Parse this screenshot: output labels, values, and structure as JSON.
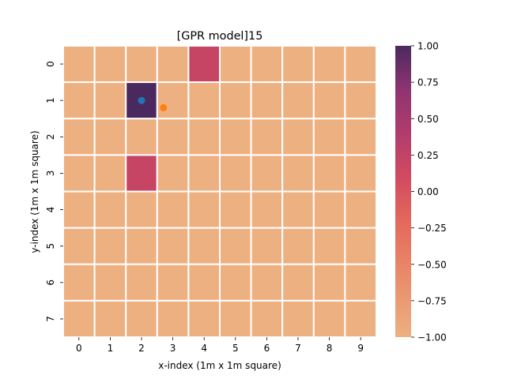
{
  "chart_data": {
    "type": "heatmap",
    "title": "[GPR model]15",
    "xlabel": "x-index (1m x 1m square)",
    "ylabel": "y-index (1m x 1m square)",
    "x_categories": [
      "0",
      "1",
      "2",
      "3",
      "4",
      "5",
      "6",
      "7",
      "8",
      "9"
    ],
    "y_categories": [
      "0",
      "1",
      "2",
      "3",
      "4",
      "5",
      "6",
      "7"
    ],
    "values": [
      [
        -1,
        -1,
        -1,
        -1,
        0.2,
        -1,
        -1,
        -1,
        -1,
        -1
      ],
      [
        -1,
        -1,
        1,
        -1,
        -1,
        -1,
        -1,
        -1,
        -1,
        -1
      ],
      [
        -1,
        -1,
        -1,
        -1,
        -1,
        -1,
        -1,
        -1,
        -1,
        -1
      ],
      [
        -1,
        -1,
        0.2,
        -1,
        -1,
        -1,
        -1,
        -1,
        -1,
        -1
      ],
      [
        -1,
        -1,
        -1,
        -1,
        -1,
        -1,
        -1,
        -1,
        -1,
        -1
      ],
      [
        -1,
        -1,
        -1,
        -1,
        -1,
        -1,
        -1,
        -1,
        -1,
        -1
      ],
      [
        -1,
        -1,
        -1,
        -1,
        -1,
        -1,
        -1,
        -1,
        -1,
        -1
      ],
      [
        -1,
        -1,
        -1,
        -1,
        -1,
        -1,
        -1,
        -1,
        -1,
        -1
      ]
    ],
    "vmin": -1.0,
    "vmax": 1.0,
    "colormap": "flare",
    "colorbar_ticks": [
      "1.00",
      "0.75",
      "0.50",
      "0.25",
      "0.00",
      "−0.25",
      "−0.50",
      "−0.75",
      "−1.00"
    ],
    "colorbar_tick_values": [
      1.0,
      0.75,
      0.5,
      0.25,
      0.0,
      -0.25,
      -0.5,
      -0.75,
      -1.0
    ],
    "markers": [
      {
        "x": 2.0,
        "y": 1.0,
        "color": "#1f77b4"
      },
      {
        "x": 2.7,
        "y": 1.2,
        "color": "#ff7f0e"
      }
    ],
    "grid": true,
    "grid_color": "#ffffff"
  }
}
